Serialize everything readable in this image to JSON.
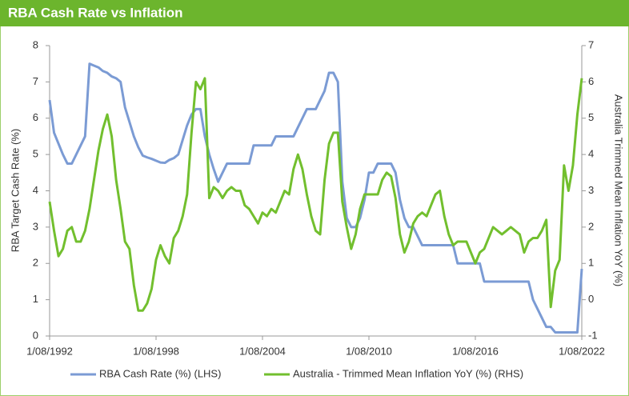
{
  "chart_data": {
    "type": "line",
    "title": "RBA Cash Rate vs Inflation",
    "y_label": "RBA Target Cash Rate (%)",
    "y2_label": "Australia Trimmed Mean Inflation YoY (%)",
    "x": [
      "1992-08",
      "1992-11",
      "1993-02",
      "1993-05",
      "1993-08",
      "1993-11",
      "1994-02",
      "1994-05",
      "1994-08",
      "1994-11",
      "1995-02",
      "1995-05",
      "1995-08",
      "1995-11",
      "1996-02",
      "1996-05",
      "1996-08",
      "1996-11",
      "1997-02",
      "1997-05",
      "1997-08",
      "1997-11",
      "1998-02",
      "1998-05",
      "1998-08",
      "1998-11",
      "1999-02",
      "1999-05",
      "1999-08",
      "1999-11",
      "2000-02",
      "2000-05",
      "2000-08",
      "2000-11",
      "2001-02",
      "2001-05",
      "2001-08",
      "2001-11",
      "2002-02",
      "2002-05",
      "2002-08",
      "2002-11",
      "2003-02",
      "2003-05",
      "2003-08",
      "2003-11",
      "2004-02",
      "2004-05",
      "2004-08",
      "2004-11",
      "2005-02",
      "2005-05",
      "2005-08",
      "2005-11",
      "2006-02",
      "2006-05",
      "2006-08",
      "2006-11",
      "2007-02",
      "2007-05",
      "2007-08",
      "2007-11",
      "2008-02",
      "2008-05",
      "2008-08",
      "2008-11",
      "2009-02",
      "2009-05",
      "2009-08",
      "2009-11",
      "2010-02",
      "2010-05",
      "2010-08",
      "2010-11",
      "2011-02",
      "2011-05",
      "2011-08",
      "2011-11",
      "2012-02",
      "2012-05",
      "2012-08",
      "2012-11",
      "2013-02",
      "2013-05",
      "2013-08",
      "2013-11",
      "2014-02",
      "2014-05",
      "2014-08",
      "2014-11",
      "2015-02",
      "2015-05",
      "2015-08",
      "2015-11",
      "2016-02",
      "2016-05",
      "2016-08",
      "2016-11",
      "2017-02",
      "2017-05",
      "2017-08",
      "2017-11",
      "2018-02",
      "2018-05",
      "2018-08",
      "2018-11",
      "2019-02",
      "2019-05",
      "2019-08",
      "2019-11",
      "2020-02",
      "2020-05",
      "2020-08",
      "2020-11",
      "2021-02",
      "2021-05",
      "2021-08",
      "2021-11",
      "2022-02",
      "2022-05",
      "2022-08"
    ],
    "series": [
      {
        "name": "RBA Cash Rate (%) (LHS)",
        "color": "#7b9bd4",
        "values": [
          6.5,
          5.6,
          5.3,
          5.0,
          4.75,
          4.75,
          5.0,
          5.25,
          5.5,
          7.5,
          7.45,
          7.4,
          7.3,
          7.25,
          7.15,
          7.1,
          7.0,
          6.3,
          5.9,
          5.5,
          5.2,
          4.97,
          4.92,
          4.88,
          4.83,
          4.78,
          4.77,
          4.85,
          4.9,
          5.0,
          5.4,
          5.8,
          6.1,
          6.25,
          6.25,
          5.5,
          5.0,
          4.6,
          4.25,
          4.5,
          4.75,
          4.75,
          4.75,
          4.75,
          4.75,
          4.75,
          5.25,
          5.25,
          5.25,
          5.25,
          5.25,
          5.5,
          5.5,
          5.5,
          5.5,
          5.5,
          5.75,
          6.0,
          6.25,
          6.25,
          6.25,
          6.5,
          6.75,
          7.25,
          7.25,
          7.0,
          4.25,
          3.25,
          3.0,
          3.0,
          3.25,
          3.75,
          4.5,
          4.5,
          4.75,
          4.75,
          4.75,
          4.75,
          4.5,
          3.75,
          3.25,
          3.0,
          3.0,
          2.75,
          2.5,
          2.5,
          2.5,
          2.5,
          2.5,
          2.5,
          2.5,
          2.5,
          2.0,
          2.0,
          2.0,
          2.0,
          2.0,
          2.0,
          1.5,
          1.5,
          1.5,
          1.5,
          1.5,
          1.5,
          1.5,
          1.5,
          1.5,
          1.5,
          1.5,
          1.0,
          0.75,
          0.5,
          0.25,
          0.25,
          0.1,
          0.1,
          0.1,
          0.1,
          0.1,
          0.1,
          1.85
        ]
      },
      {
        "name": "Australia - Trimmed Mean Inflation YoY (%) (RHS)",
        "color": "#72bf2e",
        "axis": "y2",
        "values": [
          2.7,
          1.9,
          1.2,
          1.4,
          1.9,
          2.0,
          1.6,
          1.6,
          1.9,
          2.5,
          3.3,
          4.1,
          4.7,
          5.1,
          4.5,
          3.3,
          2.5,
          1.6,
          1.4,
          0.4,
          -0.3,
          -0.3,
          -0.1,
          0.3,
          1.1,
          1.5,
          1.2,
          1.0,
          1.7,
          1.9,
          2.3,
          2.9,
          4.6,
          6.0,
          5.8,
          6.1,
          2.8,
          3.1,
          3.0,
          2.8,
          3.0,
          3.1,
          3.0,
          3.0,
          2.6,
          2.5,
          2.3,
          2.1,
          2.4,
          2.3,
          2.5,
          2.4,
          2.7,
          3.0,
          2.9,
          3.6,
          4.0,
          3.6,
          2.9,
          2.3,
          1.9,
          1.8,
          3.3,
          4.3,
          4.6,
          4.6,
          2.7,
          2.0,
          1.4,
          1.8,
          2.5,
          2.9,
          2.9,
          2.9,
          2.9,
          3.3,
          3.5,
          3.4,
          2.8,
          1.8,
          1.3,
          1.6,
          2.1,
          2.3,
          2.4,
          2.3,
          2.6,
          2.9,
          3.0,
          2.3,
          1.8,
          1.5,
          1.6,
          1.6,
          1.6,
          1.3,
          1.0,
          1.3,
          1.4,
          1.7,
          2.0,
          1.9,
          1.8,
          1.9,
          2.0,
          1.9,
          1.8,
          1.3,
          1.6,
          1.7,
          1.7,
          1.9,
          2.2,
          -0.2,
          0.8,
          1.1,
          3.7,
          3.0,
          3.7,
          5.1,
          6.1
        ]
      }
    ],
    "xlim": [
      "1992-08",
      "2022-08"
    ],
    "xticks": [
      {
        "value": "1992-08",
        "label": "1/08/1992"
      },
      {
        "value": "1998-08",
        "label": "1/08/1998"
      },
      {
        "value": "2004-08",
        "label": "1/08/2004"
      },
      {
        "value": "2010-08",
        "label": "1/08/2010"
      },
      {
        "value": "2016-08",
        "label": "1/08/2016"
      },
      {
        "value": "2022-08",
        "label": "1/08/2022"
      }
    ],
    "ylim": [
      0,
      8
    ],
    "yticks": [
      0,
      1,
      2,
      3,
      4,
      5,
      6,
      7,
      8
    ],
    "y2lim": [
      -1,
      7
    ],
    "y2ticks": [
      -1,
      0,
      1,
      2,
      3,
      4,
      5,
      6,
      7
    ],
    "grid": false,
    "legend": "bottom"
  }
}
